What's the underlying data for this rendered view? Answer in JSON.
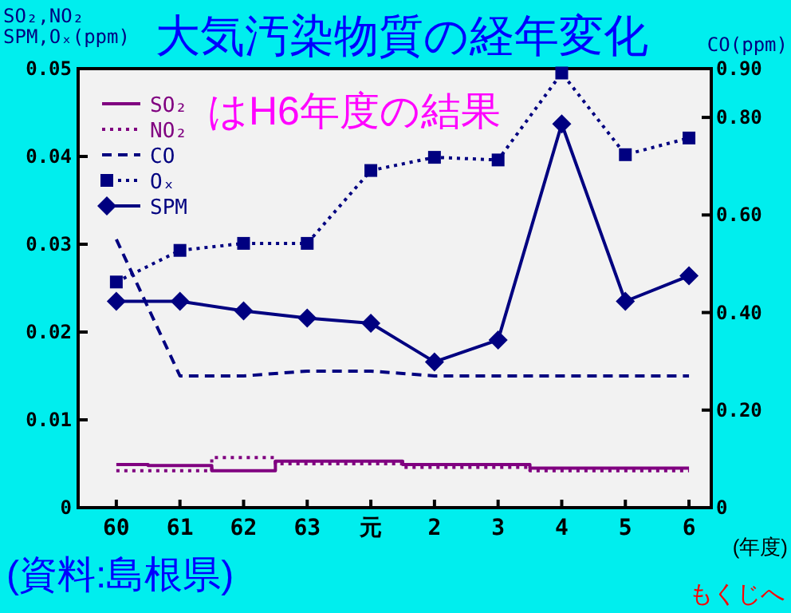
{
  "chart_data": {
    "type": "line",
    "title": "大気汚染物質の経年変化",
    "subtitle": "はH6年度の結果",
    "ylabel": "SO₂,NO₂\nSPM,Oₓ(ppm)",
    "y2label": "CO(ppm)",
    "xlabel": "(年度)",
    "annotations": [
      "(資料:島根県)",
      "もくじへ"
    ],
    "categories": [
      "60",
      "61",
      "62",
      "63",
      "元",
      "2",
      "3",
      "4",
      "5",
      "6"
    ],
    "ylim": [
      0,
      0.05
    ],
    "yticks": [
      0,
      0.01,
      0.02,
      0.03,
      0.04,
      0.05
    ],
    "y2lim": [
      0,
      0.9
    ],
    "y2ticks": [
      {
        "value": 0,
        "label": "0"
      },
      {
        "value": 0.2,
        "label": "0.20"
      },
      {
        "value": 0.4,
        "label": "0.40"
      },
      {
        "value": 0.6,
        "label": "0.60"
      },
      {
        "value": 0.8,
        "label": "0.80"
      },
      {
        "value": 0.9,
        "label": "0.90"
      }
    ],
    "legend": "top left",
    "grid": false,
    "series": [
      {
        "name": "SO₂",
        "type": "step",
        "color": "#800080",
        "line_style": "solid",
        "marker": "none",
        "values": [
          0.0049,
          0.0048,
          0.0042,
          0.0053,
          0.0053,
          0.0049,
          0.0049,
          0.0045,
          0.0045,
          0.0045
        ]
      },
      {
        "name": "NO₂",
        "type": "step",
        "color": "#800080",
        "line_style": "dotted",
        "marker": "none",
        "values": [
          0.0042,
          0.0042,
          0.0057,
          0.005,
          0.005,
          0.0046,
          0.0046,
          0.0042,
          0.0042,
          0.0042
        ]
      },
      {
        "name": "CO",
        "type": "line",
        "axis": "y2",
        "color": "#000080",
        "line_style": "dashed",
        "marker": "none",
        "values": [
          0.55,
          0.27,
          0.27,
          0.28,
          0.28,
          0.27,
          0.27,
          0.27,
          0.27,
          0.27
        ]
      },
      {
        "name": "Oₓ",
        "type": "line",
        "color": "#000080",
        "line_style": "dotted",
        "marker": "square",
        "values": [
          0.0257,
          0.0293,
          0.0301,
          0.0301,
          0.0384,
          0.0399,
          0.0396,
          0.0495,
          0.0402,
          0.0421
        ]
      },
      {
        "name": "SPM",
        "type": "line",
        "color": "#000080",
        "line_style": "solid",
        "marker": "diamond",
        "values": [
          0.0235,
          0.0235,
          0.0224,
          0.0216,
          0.021,
          0.0166,
          0.0191,
          0.0437,
          0.0235,
          0.0264
        ]
      }
    ]
  }
}
